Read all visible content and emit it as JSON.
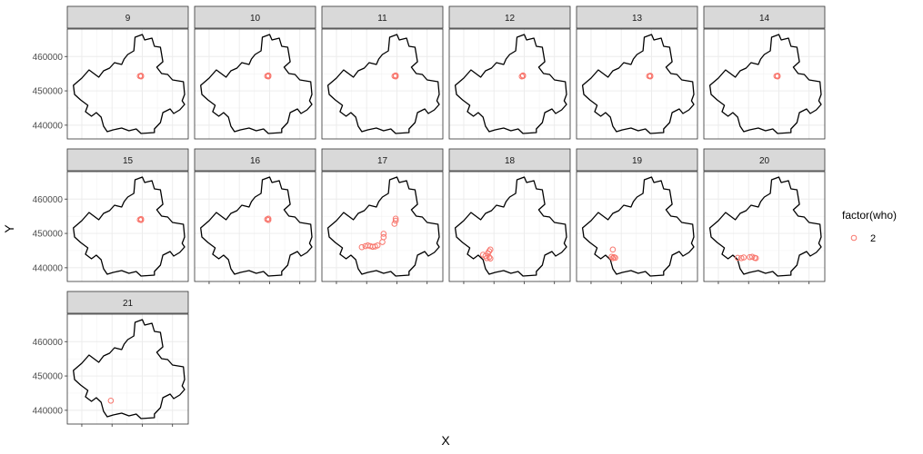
{
  "chart_data": {
    "type": "scatter",
    "facet_by": "time step",
    "facets": [
      "9",
      "10",
      "11",
      "12",
      "13",
      "14",
      "15",
      "16",
      "17",
      "18",
      "19",
      "20",
      "21"
    ],
    "xlabel": "X",
    "ylabel": "Y",
    "y_ticks": [
      "440000",
      "450000",
      "460000"
    ],
    "ylim": [
      436000,
      468000
    ],
    "xlim": [
      0,
      100
    ],
    "x_tick_values": [
      12,
      37,
      62,
      87
    ],
    "x_tick_labels_visible": false,
    "grid": true,
    "legend": {
      "title": "factor(who)",
      "entries": [
        {
          "label": "2",
          "color": "#F8766D",
          "marker": "open-circle"
        }
      ],
      "position": "right"
    },
    "series": [
      {
        "name": "2",
        "color": "#F8766D",
        "points_by_facet": {
          "9": [
            [
              61,
              454200
            ],
            [
              61,
              454400
            ],
            [
              60,
              454300
            ]
          ],
          "10": [
            [
              61,
              454200
            ],
            [
              61,
              454500
            ],
            [
              60,
              454300
            ]
          ],
          "11": [
            [
              61,
              454200
            ],
            [
              61,
              454500
            ],
            [
              60,
              454300
            ]
          ],
          "12": [
            [
              61,
              454300
            ],
            [
              61,
              454500
            ],
            [
              60,
              454200
            ]
          ],
          "13": [
            [
              61,
              454200
            ],
            [
              61,
              454400
            ],
            [
              60,
              454300
            ]
          ],
          "14": [
            [
              61,
              454200
            ],
            [
              61,
              454400
            ],
            [
              60,
              454300
            ]
          ],
          "15": [
            [
              61,
              453900
            ],
            [
              61,
              454200
            ],
            [
              60,
              454000
            ]
          ],
          "16": [
            [
              61,
              453900
            ],
            [
              61,
              454300
            ],
            [
              60,
              454100
            ]
          ],
          "17": [
            [
              33,
              446000
            ],
            [
              36,
              446300
            ],
            [
              38,
              446500
            ],
            [
              40,
              446300
            ],
            [
              42,
              446100
            ],
            [
              44,
              446200
            ],
            [
              46,
              446500
            ],
            [
              50,
              447500
            ],
            [
              51,
              448900
            ],
            [
              51,
              449900
            ],
            [
              60,
              452800
            ],
            [
              61,
              453700
            ],
            [
              61,
              454300
            ]
          ],
          "18": [
            [
              28,
              443800
            ],
            [
              30,
              443400
            ],
            [
              32,
              444200
            ],
            [
              33,
              444800
            ],
            [
              34,
              445300
            ],
            [
              31,
              442800
            ],
            [
              33,
              443100
            ],
            [
              34,
              442700
            ]
          ],
          "19": [
            [
              30,
              445300
            ],
            [
              29,
              443200
            ],
            [
              30,
              442800
            ],
            [
              31,
              443100
            ],
            [
              32,
              442900
            ]
          ],
          "20": [
            [
              28,
              442900
            ],
            [
              31,
              442800
            ],
            [
              33,
              443000
            ],
            [
              38,
              443100
            ],
            [
              40,
              443200
            ],
            [
              42,
              442900
            ],
            [
              43,
              442800
            ]
          ],
          "21": [
            [
              36,
              442800
            ]
          ]
        }
      }
    ]
  }
}
